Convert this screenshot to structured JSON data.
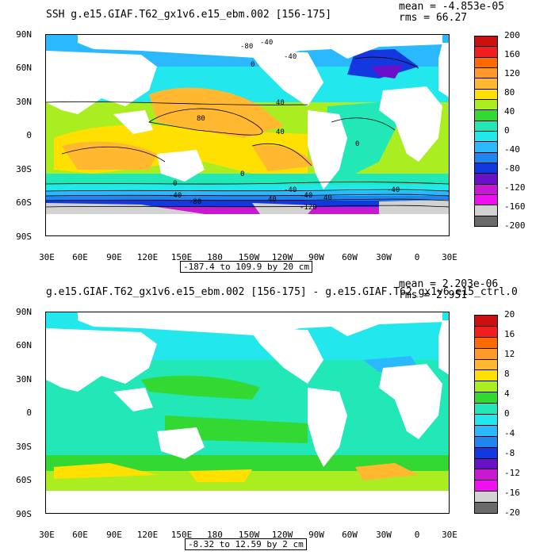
{
  "top": {
    "title": "SSH g.e15.GIAF.T62_gx1v6.e15_ebm.002 [156-175]",
    "stats_mean": "mean = -4.853e-05",
    "stats_rms": "rms = 66.27",
    "range_text": "-187.4 to 109.9 by 20 cm",
    "colorbar_ticks": [
      "200",
      "160",
      "120",
      "80",
      "40",
      "0",
      "-40",
      "-80",
      "-120",
      "-160",
      "-200"
    ],
    "colorbar_colors": [
      "#cc1010",
      "#f01e1e",
      "#ff6a00",
      "#ff9a2a",
      "#ffb830",
      "#ffe000",
      "#aaee22",
      "#33d833",
      "#22e8b8",
      "#22e8ee",
      "#2ab8ff",
      "#1e86ee",
      "#1438e0",
      "#6a10c8",
      "#c818d0",
      "#ee10ee",
      "#d2d2d2",
      "#6a6a6a"
    ],
    "contour_labels": [
      "-40",
      "-80",
      "40",
      "80",
      "-40",
      "0",
      "40",
      "0",
      "0",
      "40",
      "40",
      "-40",
      "0",
      "-40",
      "-40",
      "-80",
      "-120",
      "-40"
    ]
  },
  "bottom": {
    "title": "g.e15.GIAF.T62_gx1v6.e15_ebm.002 [156-175] - g.e15.GIAF.T62_gx1v6.e15_ctrl.0",
    "stats_mean": "mean = 2.203e-06",
    "stats_rms": "rms = 2.951",
    "range_text": "-8.32 to 12.59 by 2 cm",
    "colorbar_ticks": [
      "20",
      "16",
      "12",
      "8",
      "4",
      "0",
      "-4",
      "-8",
      "-12",
      "-16",
      "-20"
    ],
    "colorbar_colors": [
      "#cc1010",
      "#f01e1e",
      "#ff6a00",
      "#ff9a2a",
      "#ffb830",
      "#ffe000",
      "#aaee22",
      "#33d833",
      "#22e8b8",
      "#22e8ee",
      "#2ab8ff",
      "#1e86ee",
      "#1438e0",
      "#6a10c8",
      "#c818d0",
      "#ee10ee",
      "#d2d2d2",
      "#6a6a6a"
    ]
  },
  "axes": {
    "lat_labels": [
      "90N",
      "60N",
      "30N",
      "0",
      "30S",
      "60S",
      "90S"
    ],
    "lon_labels": [
      "30E",
      "60E",
      "90E",
      "120E",
      "150E",
      "180",
      "150W",
      "120W",
      "90W",
      "60W",
      "30W",
      "0",
      "30E"
    ]
  }
}
